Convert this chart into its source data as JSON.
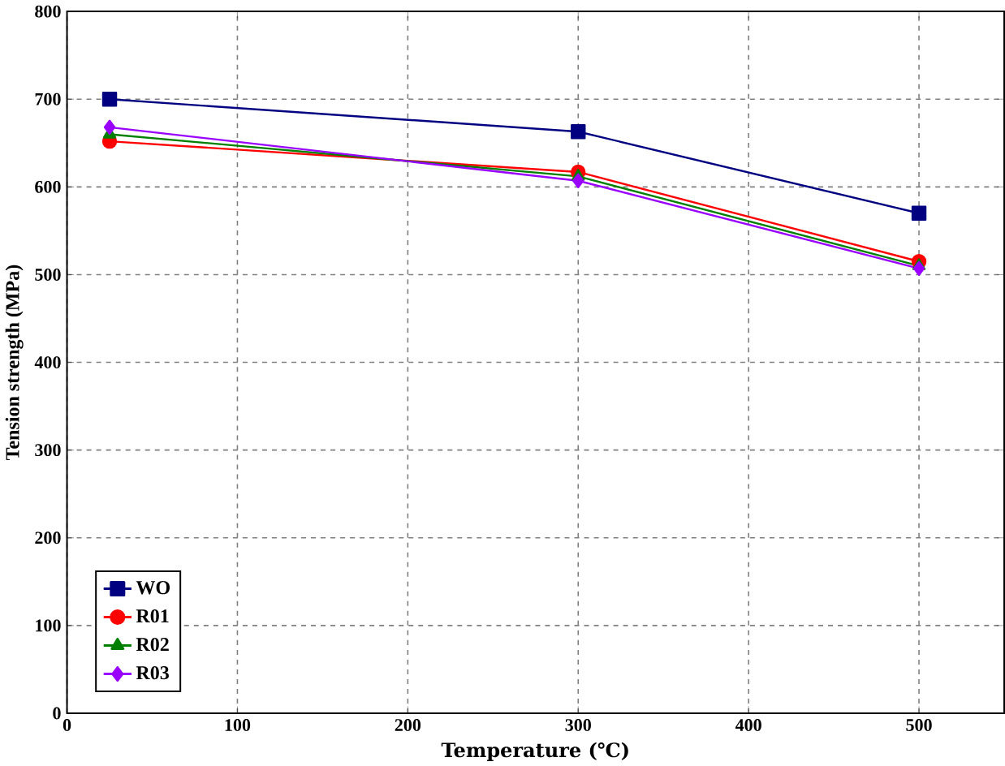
{
  "chart_data": {
    "type": "line",
    "xlabel": "Temperature (℃)",
    "ylabel": "Tension strength (MPa)",
    "x": [
      25,
      300,
      500
    ],
    "series": [
      {
        "name": "WO",
        "color": "#000080",
        "values": [
          700,
          663,
          570
        ],
        "marker": "square"
      },
      {
        "name": "R01",
        "color": "#ff0000",
        "values": [
          652,
          617,
          515
        ],
        "marker": "circle"
      },
      {
        "name": "R02",
        "color": "#008000",
        "values": [
          660,
          612,
          510
        ],
        "marker": "triangle"
      },
      {
        "name": "R03",
        "color": "#9900ff",
        "values": [
          668,
          607,
          507
        ],
        "marker": "diamond"
      }
    ],
    "xlim": [
      0,
      550
    ],
    "ylim": [
      0,
      800
    ],
    "xticks": [
      0,
      100,
      200,
      300,
      400,
      500
    ],
    "yticks": [
      0,
      100,
      200,
      300,
      400,
      500,
      600,
      700,
      800
    ],
    "grid": true,
    "legend": "bottom left"
  }
}
